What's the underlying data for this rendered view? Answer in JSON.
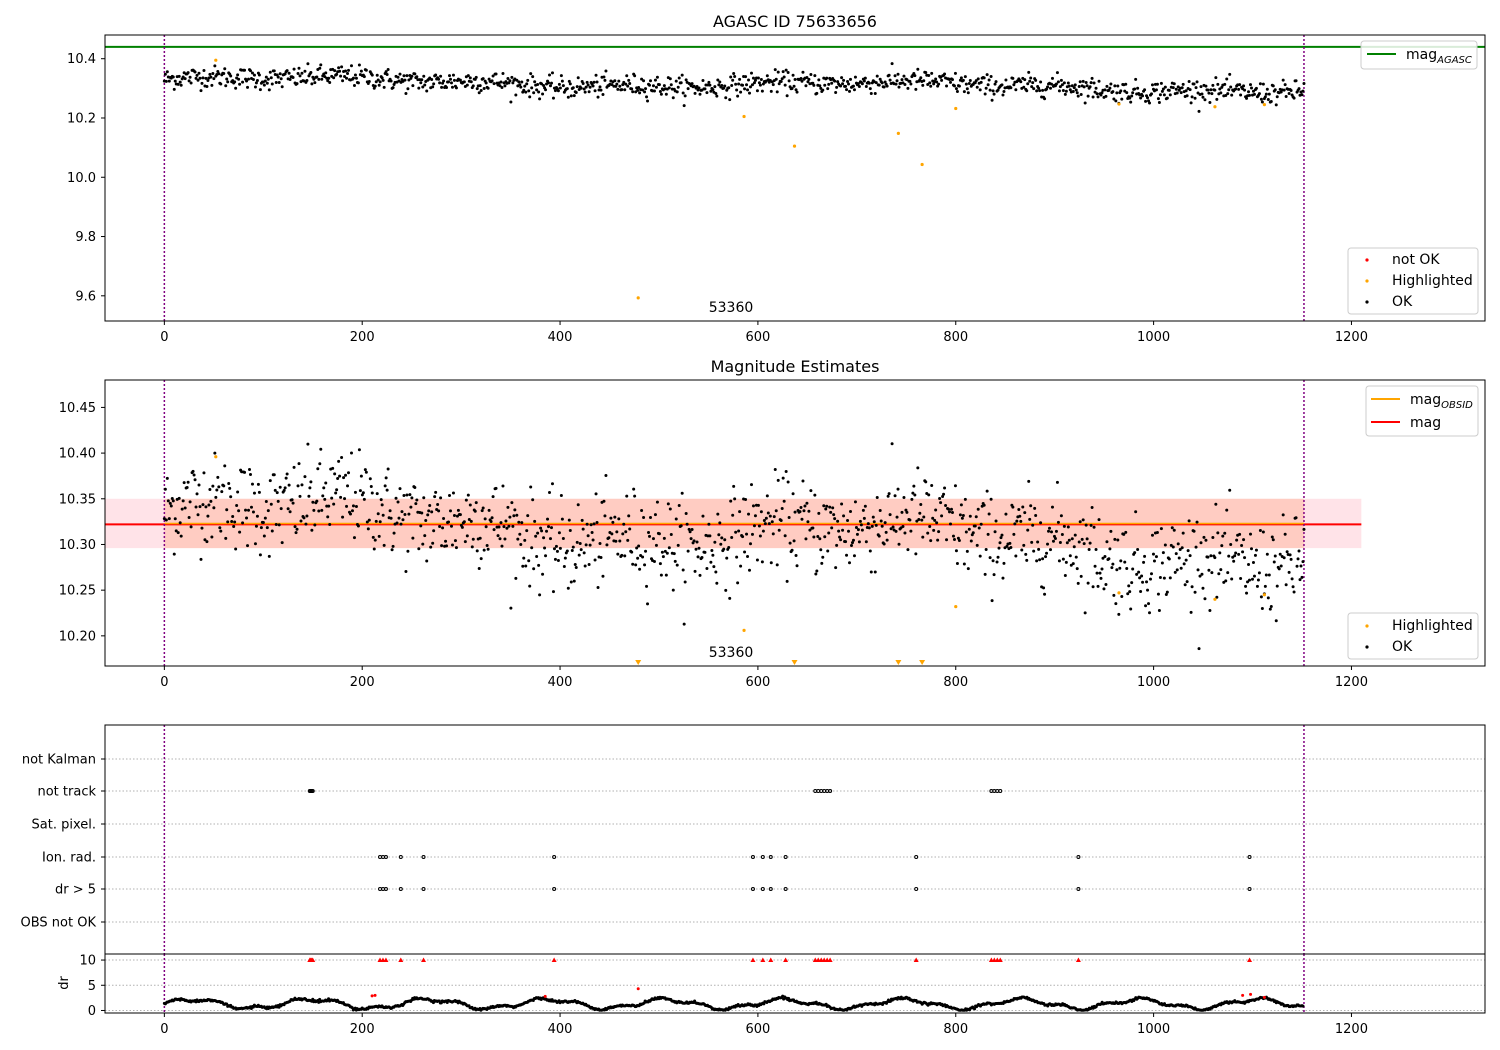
{
  "colors": {
    "ok": "#000000",
    "not_ok": "#ff0000",
    "highlighted": "#ffa500",
    "agasc_line": "#008000",
    "mag_line": "#ff0000",
    "obsid_line": "#ffa500",
    "band_fill": "#ffc0cb",
    "band_inner": "#ffa07a",
    "obs_boundary": "#800080"
  },
  "chart_data": [
    {
      "type": "scatter",
      "title": "AGASC ID 75633656",
      "xlim": [
        -60,
        1335
      ],
      "ylim": [
        9.515,
        10.48
      ],
      "x_ticks": [
        0,
        200,
        400,
        600,
        800,
        1000,
        1200
      ],
      "y_ticks": [
        9.6,
        9.8,
        10.0,
        10.2,
        10.4
      ],
      "y_tick_labels": [
        "9.6",
        "9.8",
        "10.0",
        "10.2",
        "10.4"
      ],
      "x_tick_labels": [
        "0",
        "200",
        "400",
        "600",
        "800",
        "1000",
        "1200"
      ],
      "obs_boundaries": [
        0,
        1152
      ],
      "annotation": {
        "text": "53360",
        "x": 576,
        "y": 9.555
      },
      "hlines": [
        {
          "name": "mag_AGASC",
          "y": 10.44
        }
      ],
      "line_legend": {
        "label": "mag",
        "subscript": "AGASC"
      },
      "legend": [
        "not OK",
        "Highlighted",
        "OK"
      ],
      "ok_series": {
        "x_range": [
          0,
          1152
        ],
        "n": 1152,
        "base": 10.32,
        "noise": 0.018
      },
      "highlighted": [
        {
          "x": 52,
          "y": 10.395
        },
        {
          "x": 586,
          "y": 10.205
        },
        {
          "x": 637,
          "y": 10.105
        },
        {
          "x": 742,
          "y": 10.148
        },
        {
          "x": 766,
          "y": 10.043
        },
        {
          "x": 800,
          "y": 10.232
        },
        {
          "x": 965,
          "y": 10.247
        },
        {
          "x": 1062,
          "y": 10.238
        },
        {
          "x": 1112,
          "y": 10.245
        },
        {
          "x": 479,
          "y": 9.593
        }
      ]
    },
    {
      "type": "scatter",
      "title": "Magnitude Estimates",
      "xlim": [
        -60,
        1335
      ],
      "ylim": [
        10.167,
        10.48
      ],
      "x_ticks": [
        0,
        200,
        400,
        600,
        800,
        1000,
        1200
      ],
      "x_tick_labels": [
        "0",
        "200",
        "400",
        "600",
        "800",
        "1000",
        "1200"
      ],
      "y_ticks": [
        10.2,
        10.25,
        10.3,
        10.35,
        10.4,
        10.45
      ],
      "y_tick_labels": [
        "10.20",
        "10.25",
        "10.30",
        "10.35",
        "10.40",
        "10.45"
      ],
      "obs_boundaries": [
        0,
        1152
      ],
      "annotation": {
        "text": "53360",
        "x": 576,
        "y": 10.178
      },
      "mag_line": 10.322,
      "obsid_line": 10.323,
      "band": {
        "x": [
          -60,
          1210
        ],
        "y": [
          10.296,
          10.35
        ]
      },
      "inner_band": {
        "x": [
          0,
          1152
        ],
        "y": [
          10.296,
          10.35
        ]
      },
      "legend_lines": [
        {
          "label": "mag",
          "subscript": "OBSID",
          "color": "#ffa500"
        },
        {
          "label": "mag",
          "subscript": "",
          "color": "#ff0000"
        }
      ],
      "legend": [
        "Highlighted",
        "OK"
      ],
      "ok_series": {
        "x_range": [
          0,
          1152
        ],
        "n": 1152,
        "base": 10.322,
        "noise": 0.025
      },
      "highlighted": [
        {
          "x": 52,
          "y": 10.396
        },
        {
          "x": 586,
          "y": 10.206
        },
        {
          "x": 800,
          "y": 10.232
        },
        {
          "x": 965,
          "y": 10.247
        },
        {
          "x": 1062,
          "y": 10.24
        },
        {
          "x": 1112,
          "y": 10.245
        }
      ],
      "below_range_markers": [
        479,
        637,
        742,
        766
      ]
    },
    {
      "type": "scatter",
      "title": "",
      "xlim": [
        -60,
        1335
      ],
      "categories": [
        "not Kalman",
        "not track",
        "Sat. pixel.",
        "Ion. rad.",
        "dr > 5",
        "OBS not OK"
      ],
      "flags": {
        "not track": [
          147,
          148,
          149,
          150,
          658,
          661,
          664,
          667,
          670,
          673,
          836,
          839,
          842,
          845
        ],
        "Ion. rad.": [
          218,
          221,
          224,
          239,
          262,
          394,
          595,
          605,
          613,
          628,
          760,
          924,
          1097
        ],
        "dr > 5": [
          218,
          221,
          224,
          239,
          262,
          394,
          595,
          605,
          613,
          628,
          760,
          924,
          1097
        ]
      }
    },
    {
      "type": "scatter",
      "title": "",
      "xlim": [
        -60,
        1335
      ],
      "ylim": [
        -0.5,
        11.2
      ],
      "ylabel": "dr",
      "x_ticks": [
        0,
        200,
        400,
        600,
        800,
        1000,
        1200
      ],
      "x_tick_labels": [
        "0",
        "200",
        "400",
        "600",
        "800",
        "1000",
        "1200"
      ],
      "y_ticks": [
        0,
        5,
        10
      ],
      "y_tick_labels": [
        "0",
        "5",
        "10"
      ],
      "obs_boundaries": [
        0,
        1152
      ],
      "clipped_points": [
        147,
        148,
        149,
        150,
        218,
        221,
        224,
        239,
        262,
        394,
        595,
        605,
        613,
        628,
        658,
        661,
        664,
        667,
        670,
        673,
        760,
        836,
        839,
        842,
        845,
        924,
        1097
      ],
      "red_points": [
        {
          "x": 210,
          "y": 2.9
        },
        {
          "x": 213,
          "y": 3.0
        },
        {
          "x": 385,
          "y": 2.8
        },
        {
          "x": 479,
          "y": 4.3
        },
        {
          "x": 1090,
          "y": 3.0
        },
        {
          "x": 1098,
          "y": 3.2
        },
        {
          "x": 1112,
          "y": 2.6
        }
      ]
    }
  ]
}
